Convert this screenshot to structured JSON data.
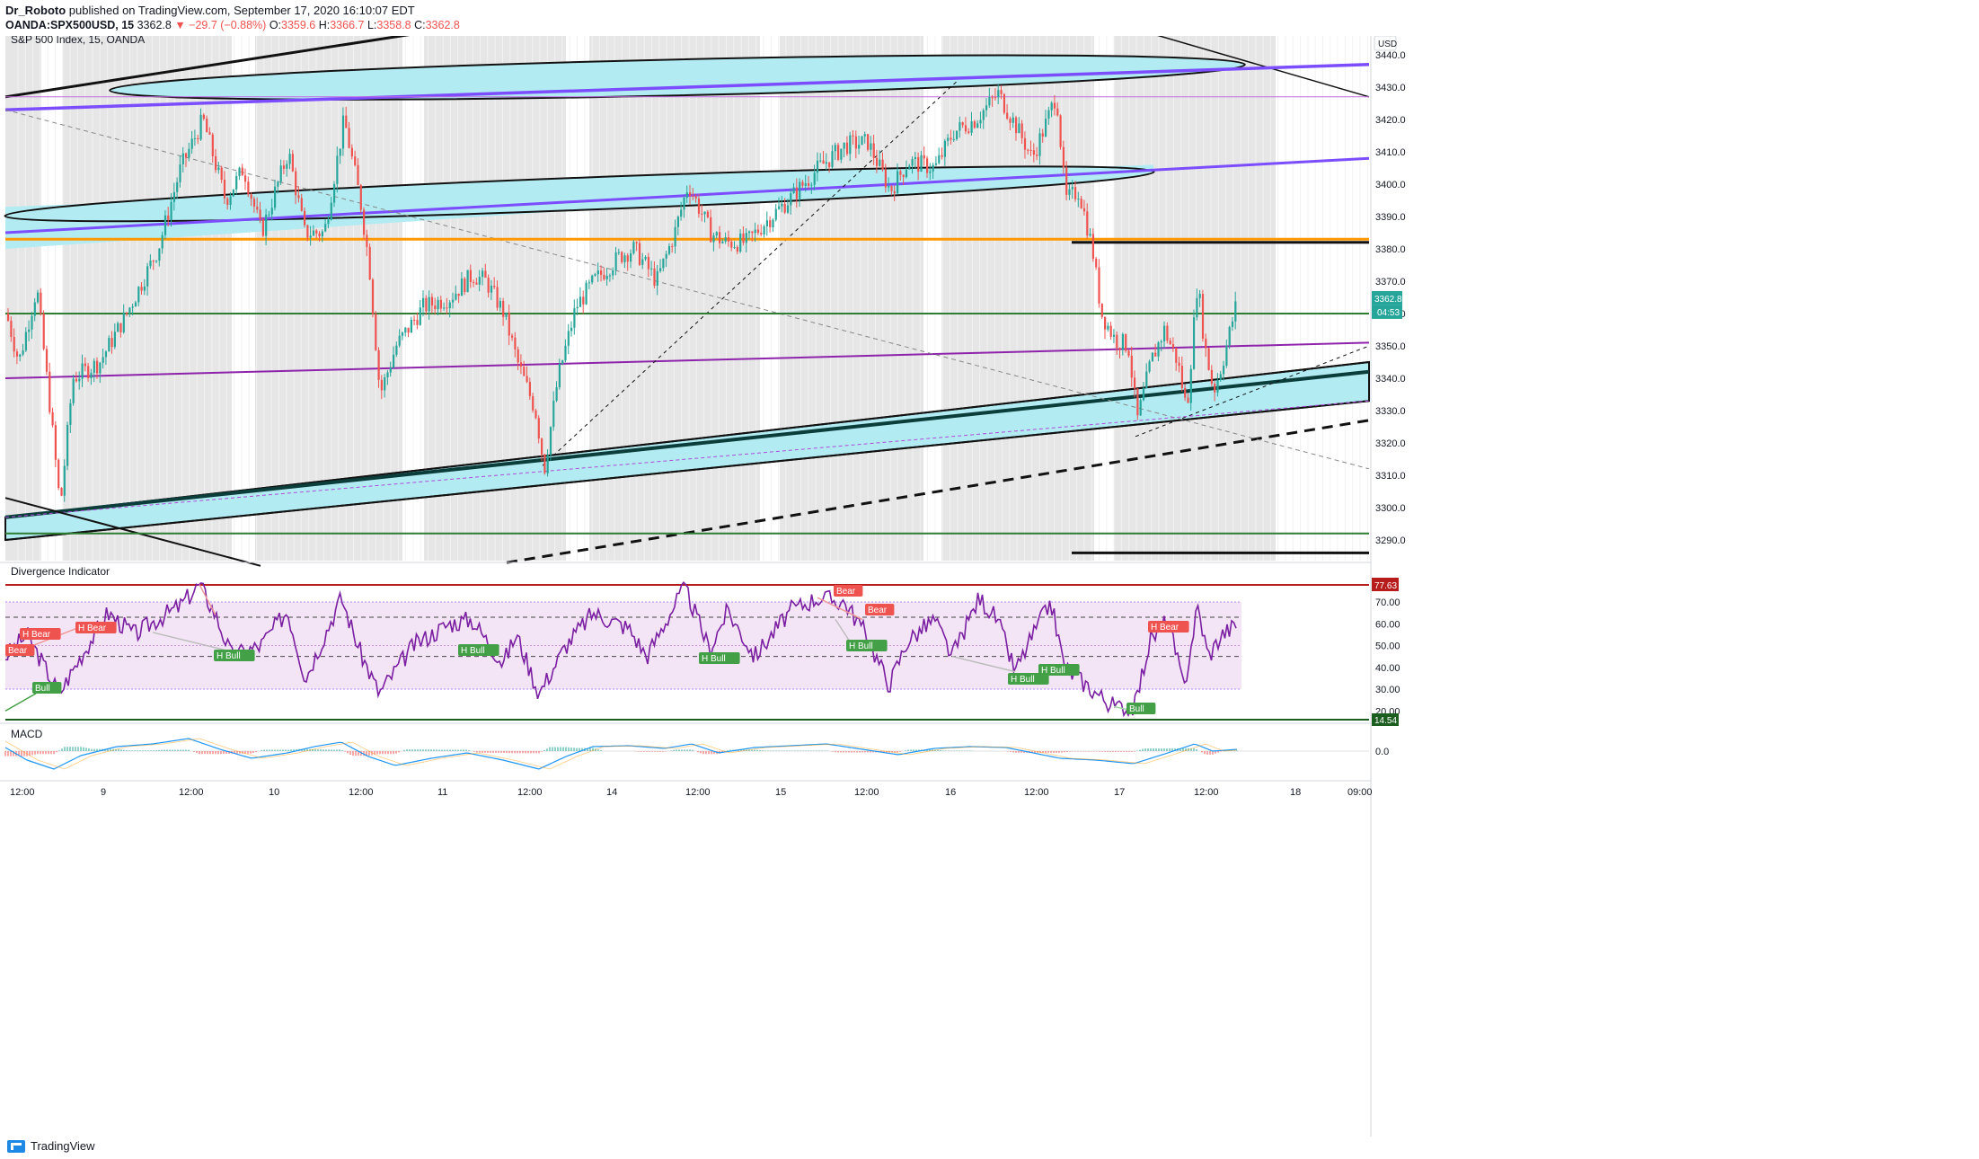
{
  "header": {
    "author": "Dr_Roboto",
    "published_text": "published on TradingView.com, September 17, 2020 16:10:07 EDT",
    "symbol_line": "OANDA:SPX500USD, 15",
    "last": "3362.8",
    "change": "▼ −29.7 (−0.88%)",
    "open_label": "O:",
    "open": "3359.6",
    "high_label": "H:",
    "high": "3366.7",
    "low_label": "L:",
    "low": "3358.8",
    "close_label": "C:",
    "close": "3362.8"
  },
  "main_pane": {
    "title": "S&P 500 Index, 15, OANDA",
    "currency_button": "USD",
    "price_badge": "3362.8",
    "countdown_badge": "04:53"
  },
  "divergence_pane": {
    "title": "Divergence Indicator",
    "top_badge": "77.63",
    "bottom_badge": "14.54"
  },
  "macd_pane": {
    "title": "MACD"
  },
  "footer": {
    "brand": "TradingView"
  },
  "colors": {
    "bull_candle": "#26a69a",
    "bear_candle": "#ef5350",
    "channel_fill": "#b2ebf2",
    "purple_line": "#7c4dff",
    "orange_line": "#ff9800",
    "green_line": "#2e7d32",
    "rsi_line": "#7b1fa2",
    "band_fill": "#f3e5f5",
    "price_badge": "#26a69a",
    "bear_label": "#ef5350",
    "bull_label": "#43a047"
  },
  "chart_data": [
    {
      "type": "candlestick",
      "title": "S&P 500 Index, 15, OANDA",
      "ylabel": "USD",
      "ylim": [
        3282,
        3452
      ],
      "y_ticks": [
        3290,
        3300,
        3310,
        3320,
        3330,
        3340,
        3350,
        3360,
        3370,
        3380,
        3390,
        3400,
        3410,
        3420,
        3430,
        3440
      ],
      "x_ticks": [
        "12:00",
        "9",
        "12:00",
        "10",
        "12:00",
        "11",
        "12:00",
        "14",
        "12:00",
        "15",
        "12:00",
        "16",
        "12:00",
        "17",
        "12:00",
        "18",
        "09:00"
      ],
      "last_price": 3362.8,
      "approx_closes": [
        {
          "x": "8 12:00",
          "y": 3360
        },
        {
          "x": "8 15:00",
          "y": 3338
        },
        {
          "x": "8 16:30",
          "y": 3300
        },
        {
          "x": "9 09:30",
          "y": 3345
        },
        {
          "x": "9 12:00",
          "y": 3420
        },
        {
          "x": "9 14:00",
          "y": 3410
        },
        {
          "x": "9 15:30",
          "y": 3395
        },
        {
          "x": "10 09:30",
          "y": 3385
        },
        {
          "x": "10 11:30",
          "y": 3422
        },
        {
          "x": "10 13:00",
          "y": 3395
        },
        {
          "x": "10 14:00",
          "y": 3375
        },
        {
          "x": "10 15:30",
          "y": 3335
        },
        {
          "x": "11 09:30",
          "y": 3362
        },
        {
          "x": "11 11:00",
          "y": 3375
        },
        {
          "x": "11 12:00",
          "y": 3340
        },
        {
          "x": "11 13:00",
          "y": 3312
        },
        {
          "x": "11 15:00",
          "y": 3350
        },
        {
          "x": "14 09:30",
          "y": 3380
        },
        {
          "x": "14 11:00",
          "y": 3372
        },
        {
          "x": "14 12:00",
          "y": 3400
        },
        {
          "x": "14 14:00",
          "y": 3378
        },
        {
          "x": "14 16:00",
          "y": 3392
        },
        {
          "x": "15 09:30",
          "y": 3410
        },
        {
          "x": "15 12:00",
          "y": 3412
        },
        {
          "x": "15 14:00",
          "y": 3395
        },
        {
          "x": "15 16:00",
          "y": 3410
        },
        {
          "x": "16 09:30",
          "y": 3420
        },
        {
          "x": "16 11:00",
          "y": 3428
        },
        {
          "x": "16 12:00",
          "y": 3408
        },
        {
          "x": "16 13:00",
          "y": 3428
        },
        {
          "x": "16 14:00",
          "y": 3398
        },
        {
          "x": "16 15:30",
          "y": 3378
        },
        {
          "x": "16 16:30",
          "y": 3355
        },
        {
          "x": "17 09:30",
          "y": 3325
        },
        {
          "x": "17 11:00",
          "y": 3350
        },
        {
          "x": "17 12:00",
          "y": 3330
        },
        {
          "x": "17 12:30",
          "y": 3375
        },
        {
          "x": "17 13:30",
          "y": 3335
        },
        {
          "x": "17 14:30",
          "y": 3350
        },
        {
          "x": "17 15:30",
          "y": 3362.8
        }
      ]
    },
    {
      "type": "line",
      "title": "Divergence Indicator",
      "ylim": [
        14,
        80
      ],
      "y_ticks": [
        20,
        30,
        40,
        50,
        60,
        70
      ],
      "levels": {
        "upper": 77.63,
        "lower": 14.54,
        "band_high": 70,
        "band_low": 30,
        "dashed_high": 63,
        "dashed_low": 45
      },
      "annotations": [
        "Bear",
        "H Bear",
        "H Bear",
        "Bull",
        "H Bull",
        "H Bull",
        "H Bull",
        "Bear",
        "Bear",
        "H Bull",
        "H Bull",
        "H Bull",
        "H Bear",
        "Bull"
      ]
    },
    {
      "type": "line",
      "title": "MACD",
      "y_ticks": [
        0.0
      ]
    }
  ]
}
